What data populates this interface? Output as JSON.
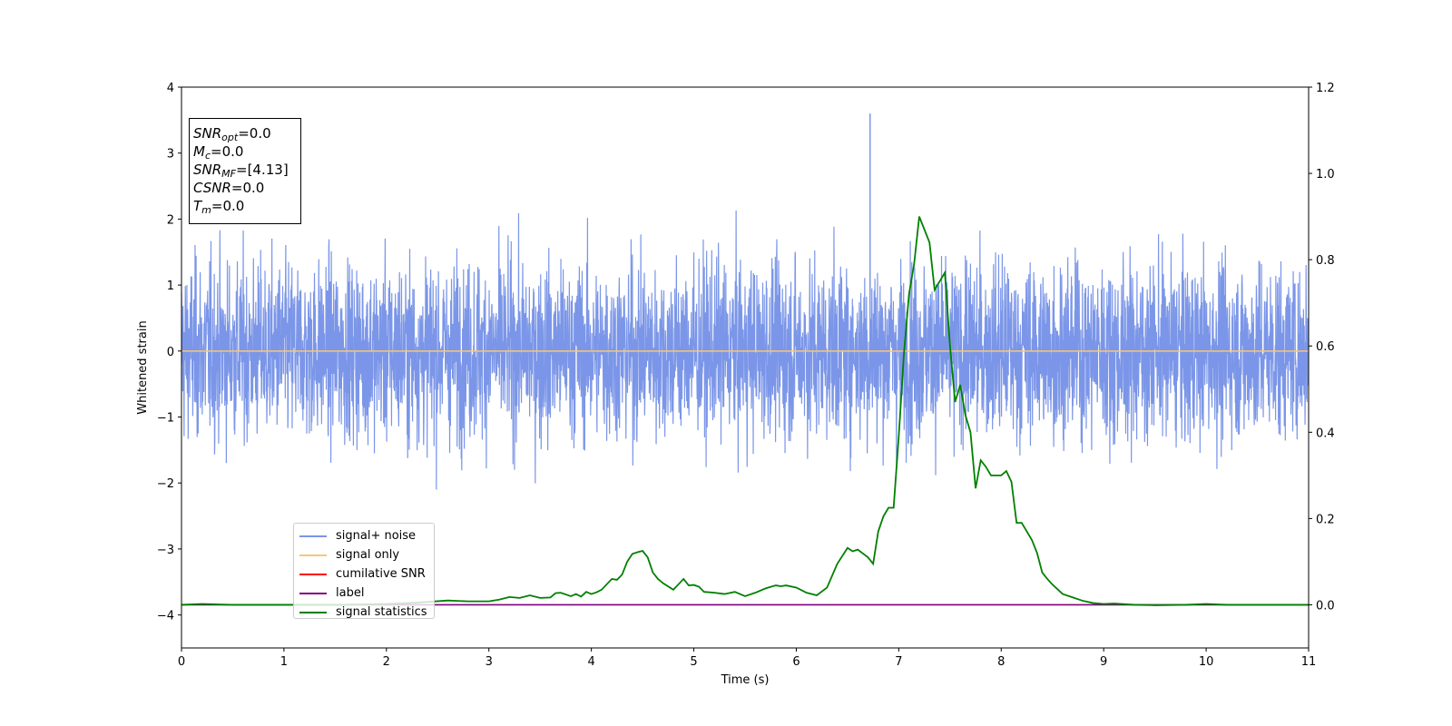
{
  "chart_data": {
    "type": "line",
    "xlabel": "Time (s)",
    "ylabel": "Whitened strain",
    "xlim": [
      0,
      11
    ],
    "ylim": [
      -4.5,
      4
    ],
    "y2lim": [
      -0.1,
      1.2
    ],
    "x_ticks": [
      "0",
      "1",
      "2",
      "3",
      "4",
      "5",
      "6",
      "7",
      "8",
      "9",
      "10",
      "11"
    ],
    "y_ticks": [
      "4",
      "3",
      "2",
      "1",
      "0",
      "−1",
      "−2",
      "−3",
      "−4"
    ],
    "y2_ticks": [
      "1.2",
      "1.0",
      "0.8",
      "0.6",
      "0.4",
      "0.2",
      "0.0"
    ],
    "grid": false,
    "legend_position": "lower-left",
    "series": [
      {
        "name": "signal+ noise",
        "color": "#7b96e8",
        "axis": "left",
        "description": "whitened noise, roughly uniform band between -1.5 and 1.5 with spikes to about ±3",
        "peak": 3.6,
        "peak_time": 6.72
      },
      {
        "name": "signal only",
        "color": "#f7c77a",
        "axis": "left",
        "values_constant": 0
      },
      {
        "name": "cumilative SNR",
        "color": "#ff0000",
        "axis": "right"
      },
      {
        "name": "label",
        "color": "#800080",
        "axis": "right",
        "values_constant": 0.0
      },
      {
        "name": "signal statistics",
        "color": "#008000",
        "axis": "right",
        "x": [
          0,
          0.2,
          0.5,
          1,
          1.5,
          2,
          2.3,
          2.6,
          2.8,
          3,
          3.1,
          3.2,
          3.3,
          3.4,
          3.5,
          3.6,
          3.65,
          3.7,
          3.8,
          3.85,
          3.9,
          3.95,
          4,
          4.05,
          4.1,
          4.2,
          4.25,
          4.3,
          4.35,
          4.4,
          4.45,
          4.5,
          4.55,
          4.6,
          4.65,
          4.7,
          4.8,
          4.9,
          4.95,
          5,
          5.05,
          5.1,
          5.2,
          5.3,
          5.4,
          5.5,
          5.6,
          5.7,
          5.8,
          5.85,
          5.9,
          6,
          6.1,
          6.2,
          6.3,
          6.4,
          6.5,
          6.55,
          6.6,
          6.7,
          6.75,
          6.8,
          6.85,
          6.9,
          6.95,
          7,
          7.05,
          7.1,
          7.15,
          7.2,
          7.25,
          7.3,
          7.35,
          7.4,
          7.45,
          7.5,
          7.55,
          7.6,
          7.65,
          7.7,
          7.75,
          7.8,
          7.85,
          7.9,
          7.95,
          8,
          8.05,
          8.1,
          8.15,
          8.2,
          8.25,
          8.3,
          8.35,
          8.4,
          8.45,
          8.5,
          8.6,
          8.7,
          8.8,
          8.9,
          9,
          9.1,
          9.3,
          9.5,
          9.8,
          10,
          10.2,
          10.5,
          11
        ],
        "values": [
          0.0,
          0.002,
          0.0,
          0.0,
          0.0,
          0.002,
          0.005,
          0.01,
          0.008,
          0.008,
          0.012,
          0.018,
          0.016,
          0.022,
          0.016,
          0.017,
          0.027,
          0.028,
          0.02,
          0.025,
          0.019,
          0.03,
          0.025,
          0.029,
          0.035,
          0.06,
          0.058,
          0.07,
          0.1,
          0.118,
          0.122,
          0.125,
          0.11,
          0.075,
          0.06,
          0.05,
          0.035,
          0.06,
          0.045,
          0.046,
          0.042,
          0.03,
          0.028,
          0.025,
          0.03,
          0.02,
          0.028,
          0.038,
          0.045,
          0.043,
          0.045,
          0.04,
          0.028,
          0.022,
          0.04,
          0.095,
          0.132,
          0.124,
          0.128,
          0.11,
          0.095,
          0.17,
          0.205,
          0.225,
          0.225,
          0.39,
          0.58,
          0.72,
          0.79,
          0.9,
          0.87,
          0.84,
          0.73,
          0.75,
          0.77,
          0.6,
          0.47,
          0.51,
          0.44,
          0.4,
          0.27,
          0.335,
          0.32,
          0.3,
          0.3,
          0.3,
          0.31,
          0.285,
          0.19,
          0.19,
          0.17,
          0.15,
          0.12,
          0.075,
          0.06,
          0.047,
          0.025,
          0.017,
          0.009,
          0.004,
          0.002,
          0.003,
          0.0,
          -0.001,
          0.0,
          0.002,
          0.0,
          0.0,
          0.0
        ]
      }
    ],
    "annotation_box": [
      {
        "base": "SNR",
        "sub": "opt",
        "value": "=0.0"
      },
      {
        "base": "M",
        "sub": "c",
        "value": "=0.0"
      },
      {
        "base": "SNR",
        "sub": "MF",
        "value": "=[4.13]"
      },
      {
        "base": "CSNR",
        "sub": "",
        "value": "=0.0"
      },
      {
        "base": "T",
        "sub": "m",
        "value": "=0.0"
      }
    ]
  }
}
